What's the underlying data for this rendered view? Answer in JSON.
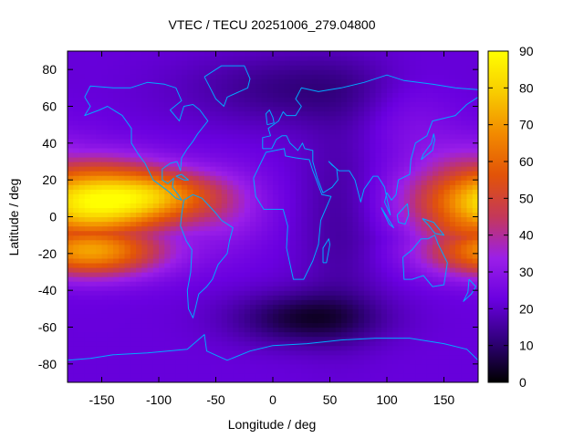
{
  "chart_data": {
    "type": "heatmap",
    "title": "VTEC / TECU 20251006_279.04800",
    "xlabel": "Longitude / deg",
    "ylabel": "Latitude / deg",
    "xlim": [
      -180,
      180
    ],
    "ylim": [
      -90,
      90
    ],
    "x_ticks": [
      -150,
      -100,
      -50,
      0,
      50,
      100,
      150
    ],
    "y_ticks": [
      -80,
      -60,
      -40,
      -20,
      0,
      20,
      40,
      60,
      80
    ],
    "colorbar": {
      "range": [
        0,
        90
      ],
      "ticks": [
        0,
        10,
        20,
        30,
        40,
        50,
        60,
        70,
        80,
        90
      ],
      "palette": [
        "#000000",
        "#30007a",
        "#6a00e0",
        "#9b1fe8",
        "#c4385a",
        "#e25308",
        "#f28a00",
        "#f8cc00",
        "#ffff00"
      ]
    },
    "grid": false,
    "legend": "colorbar-right",
    "field_peaks": [
      {
        "lon": -165,
        "lat": 8,
        "vtec": 86
      },
      {
        "lon": 172,
        "lat": 6,
        "vtec": 70
      },
      {
        "lon": 30,
        "lat": -55,
        "vtec": 5
      },
      {
        "lon": 20,
        "lat": 70,
        "vtec": 12
      }
    ],
    "overlay": "coastlines",
    "overlay_color": "#00aaff"
  }
}
